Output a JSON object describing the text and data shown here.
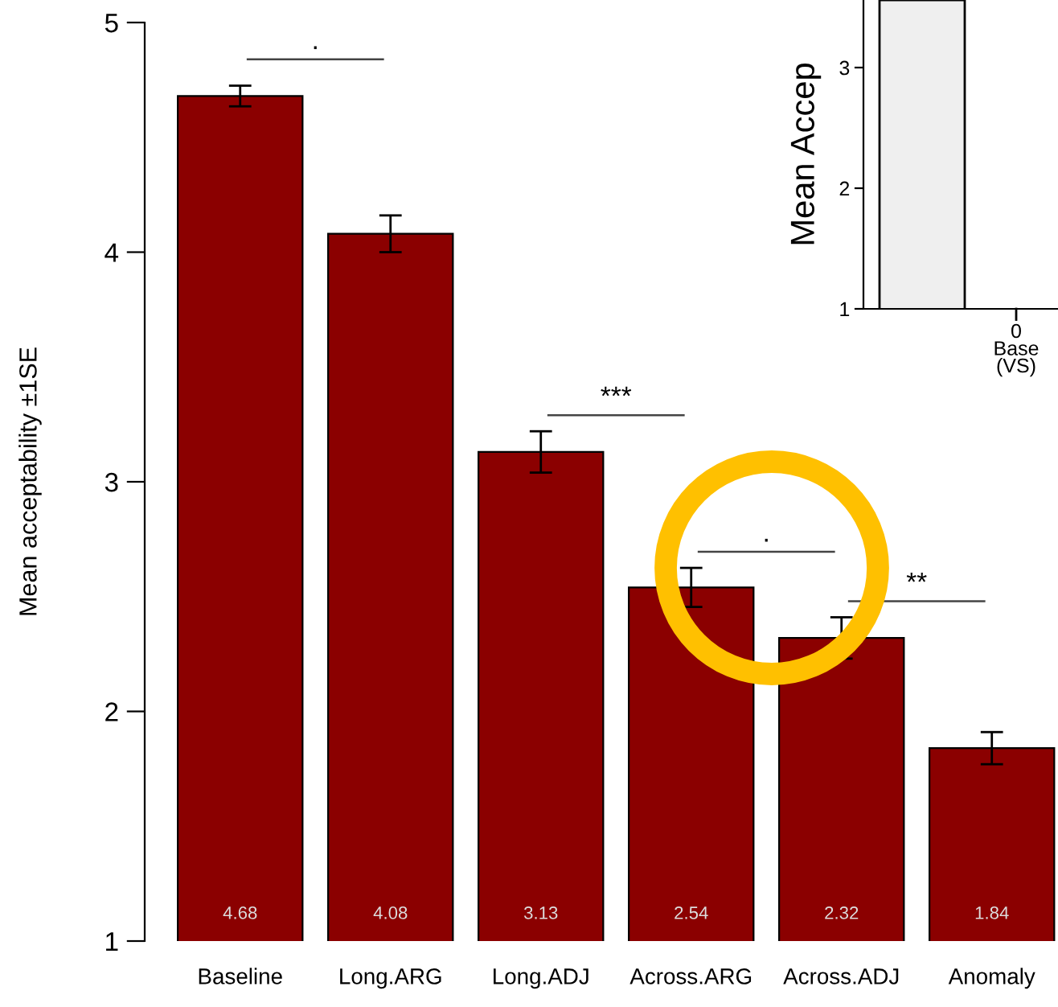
{
  "chart_data": [
    {
      "type": "bar",
      "ylabel": "Mean acceptability ±1SE",
      "categories": [
        "Baseline",
        "Long.ARG",
        "Long.ADJ",
        "Across.ARG",
        "Across.ADJ",
        "Anomaly"
      ],
      "values": [
        4.68,
        4.08,
        3.13,
        2.54,
        2.32,
        1.84
      ],
      "errors": [
        0.045,
        0.08,
        0.09,
        0.085,
        0.09,
        0.07
      ],
      "color": "#8b0000",
      "data_labels": true,
      "ylim": [
        1,
        5
      ],
      "yticks": [
        1,
        2,
        3,
        4,
        5
      ],
      "grid": false,
      "annotations": [
        ".",
        "***",
        ".",
        "**"
      ]
    },
    {
      "type": "bar",
      "ylabel": "Mean Accep",
      "categories": [
        null
      ],
      "values": [
        3.56
      ],
      "color": "#efefef",
      "ylim": [
        1,
        3.56
      ],
      "yticks": [
        1,
        2,
        3
      ],
      "grid": false,
      "annotations": [
        "0\nBase\n(VS)"
      ]
    }
  ]
}
